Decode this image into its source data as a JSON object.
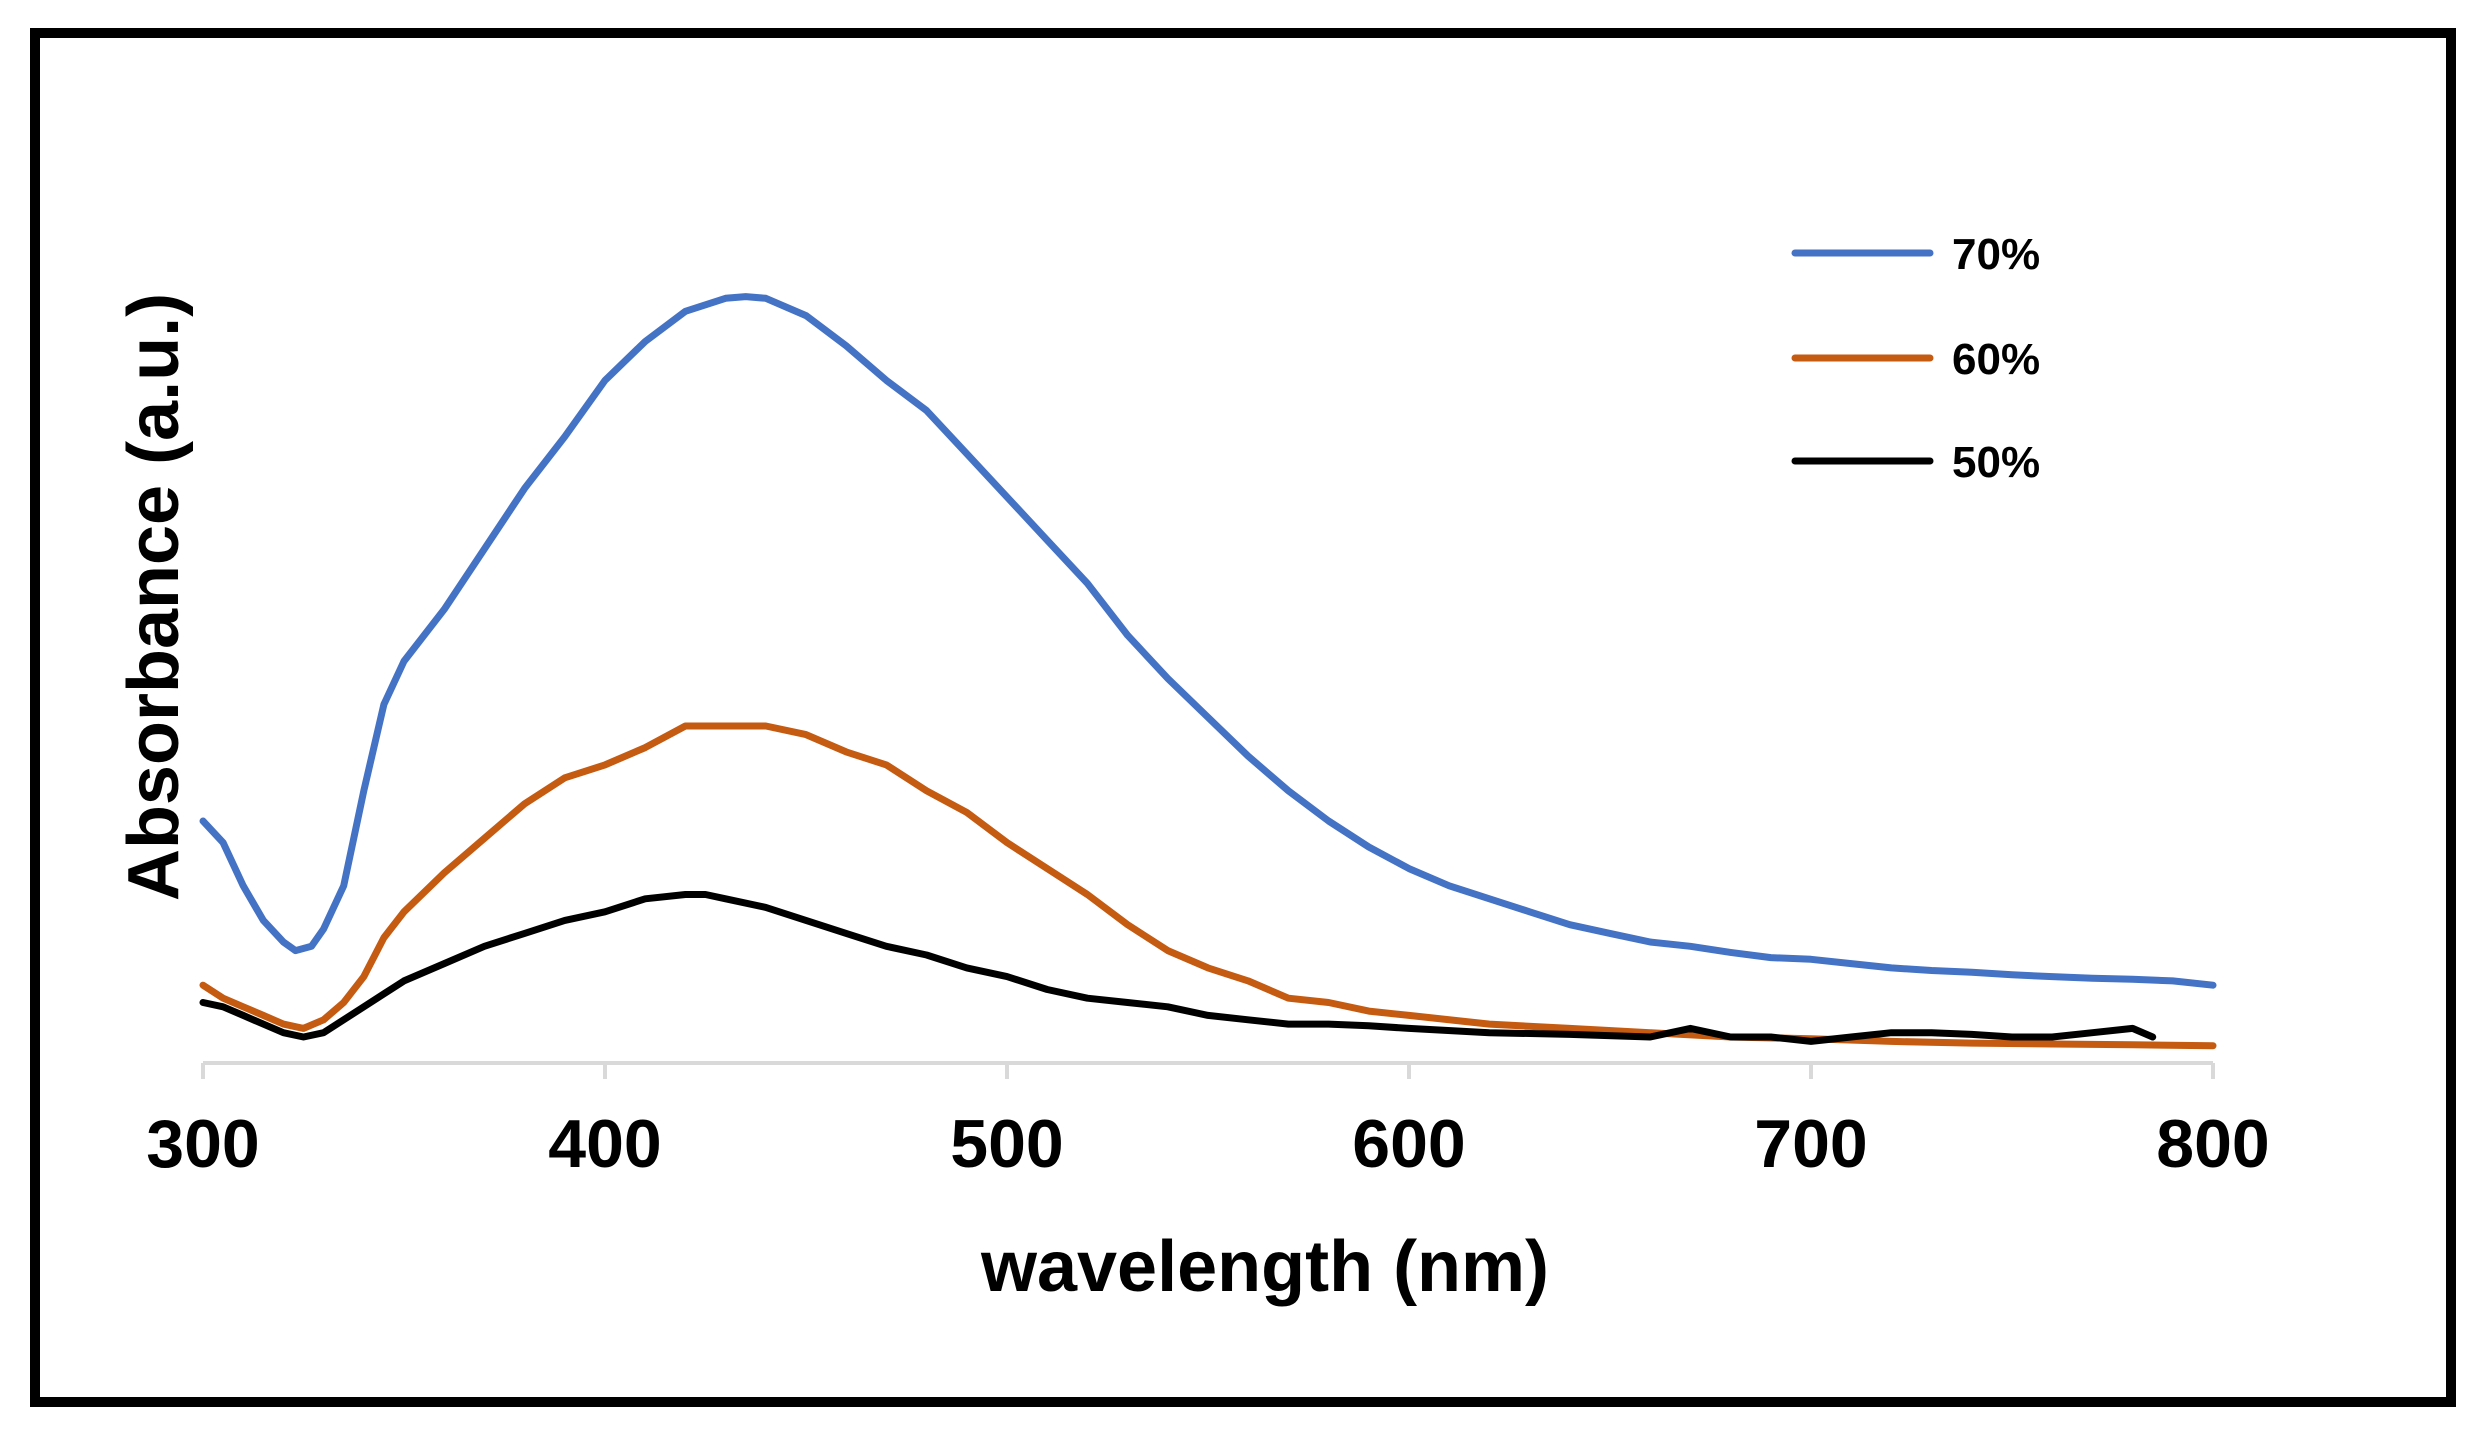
{
  "chart_data": {
    "type": "line",
    "title": "",
    "xlabel": "wavelength (nm)",
    "ylabel": "Absorbance (a.u.)",
    "xlim": [
      300,
      800
    ],
    "ylim": [
      0,
      100
    ],
    "x_ticks": [
      300,
      400,
      500,
      600,
      700,
      800
    ],
    "y_ticks_shown": false,
    "grid": false,
    "legend_position": "top-right",
    "series": [
      {
        "name": "70%",
        "color": "#4472C4",
        "x": [
          300,
          305,
          310,
          315,
          320,
          323,
          327,
          330,
          335,
          340,
          345,
          350,
          360,
          370,
          380,
          390,
          400,
          410,
          420,
          430,
          435,
          440,
          450,
          460,
          470,
          480,
          490,
          500,
          510,
          520,
          530,
          540,
          550,
          560,
          570,
          580,
          590,
          600,
          610,
          620,
          630,
          640,
          650,
          660,
          670,
          680,
          690,
          700,
          710,
          720,
          730,
          740,
          750,
          760,
          770,
          780,
          790,
          800
        ],
        "y": [
          26.5,
          24,
          19,
          15,
          12.5,
          11.5,
          12,
          14,
          19,
          30,
          40,
          45,
          51,
          58,
          65,
          71,
          77.5,
          82,
          85.5,
          87,
          87.2,
          87,
          85,
          81.5,
          77.5,
          74,
          69,
          64,
          59,
          54,
          48,
          43,
          38.5,
          34,
          30,
          26.5,
          23.5,
          21,
          19,
          17.5,
          16,
          14.5,
          13.5,
          12.5,
          12,
          11.3,
          10.7,
          10.5,
          10,
          9.5,
          9.2,
          9,
          8.7,
          8.5,
          8.3,
          8.2,
          8,
          7.5
        ]
      },
      {
        "name": "60%",
        "color": "#C55A11",
        "x": [
          300,
          305,
          310,
          315,
          320,
          325,
          330,
          335,
          340,
          345,
          350,
          360,
          370,
          380,
          390,
          400,
          410,
          420,
          430,
          440,
          450,
          460,
          470,
          480,
          490,
          500,
          510,
          520,
          530,
          540,
          550,
          560,
          570,
          580,
          590,
          600,
          620,
          640,
          660,
          680,
          700,
          720,
          740,
          760,
          780,
          800
        ],
        "y": [
          7.5,
          6,
          5,
          4,
          3,
          2.5,
          3.5,
          5.5,
          8.5,
          13,
          16,
          20.5,
          24.5,
          28.5,
          31.5,
          33,
          35,
          37.5,
          37.5,
          37.5,
          36.5,
          34.5,
          33,
          30,
          27.5,
          24,
          21,
          18,
          14.5,
          11.5,
          9.5,
          8,
          6,
          5.5,
          4.5,
          4,
          3,
          2.5,
          2,
          1.5,
          1.3,
          1,
          0.8,
          0.7,
          0.6,
          0.5
        ]
      },
      {
        "name": "50%",
        "color": "#000000",
        "x": [
          300,
          305,
          310,
          315,
          320,
          325,
          330,
          340,
          350,
          360,
          370,
          380,
          390,
          400,
          410,
          420,
          425,
          430,
          440,
          450,
          460,
          470,
          480,
          490,
          500,
          510,
          520,
          530,
          540,
          550,
          560,
          570,
          580,
          590,
          600,
          620,
          640,
          660,
          670,
          680,
          690,
          700,
          710,
          720,
          730,
          740,
          750,
          760,
          770,
          780,
          785
        ],
        "y": [
          5.5,
          5,
          4,
          3,
          2,
          1.5,
          2,
          5,
          8,
          10,
          12,
          13.5,
          15,
          16,
          17.5,
          18,
          18,
          17.5,
          16.5,
          15,
          13.5,
          12,
          11,
          9.5,
          8.5,
          7,
          6,
          5.5,
          5,
          4,
          3.5,
          3,
          3,
          2.8,
          2.5,
          2,
          1.8,
          1.5,
          2.5,
          1.5,
          1.5,
          1,
          1.5,
          2,
          2,
          1.8,
          1.5,
          1.5,
          2,
          2.5,
          1.5
        ]
      }
    ]
  }
}
